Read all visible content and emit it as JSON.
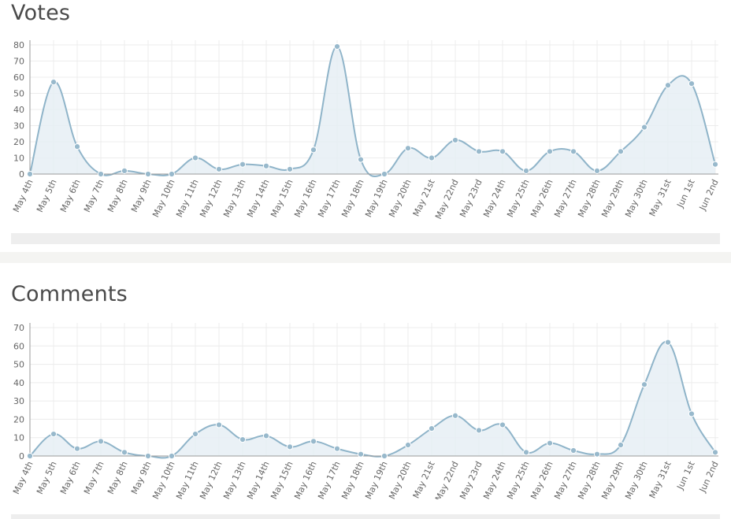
{
  "colors": {
    "line": "#8fb4c9",
    "fill": "#e6eff4",
    "point": "#98b9cc",
    "grid": "#ececec",
    "axis": "#9a9a9a",
    "background": "#ffffff",
    "separator": "#f4f4f2",
    "scrollbar": "#eeeeee"
  },
  "panels": [
    {
      "title": "Votes"
    },
    {
      "title": "Comments"
    }
  ],
  "chart_data": [
    {
      "type": "area",
      "title": "Votes",
      "xlabel": "",
      "ylabel": "",
      "grid": true,
      "ylim": [
        0,
        80
      ],
      "yticks": [
        0,
        10,
        20,
        30,
        40,
        50,
        60,
        70,
        80
      ],
      "categories": [
        "May 4th",
        "May 5th",
        "May 6th",
        "May 7th",
        "May 8th",
        "May 9th",
        "May 10th",
        "May 11th",
        "May 12th",
        "May 13th",
        "May 14th",
        "May 15th",
        "May 16th",
        "May 17th",
        "May 18th",
        "May 19th",
        "May 20th",
        "May 21st",
        "May 22nd",
        "May 23rd",
        "May 24th",
        "May 25th",
        "May 26th",
        "May 27th",
        "May 28th",
        "May 29th",
        "May 30th",
        "May 31st",
        "Jun 1st",
        "Jun 2nd"
      ],
      "series": [
        {
          "values": [
            0,
            57,
            17,
            0,
            2,
            0,
            0,
            10,
            3,
            6,
            5,
            3,
            15,
            79,
            9,
            0,
            16,
            10,
            21,
            14,
            14,
            2,
            14,
            14,
            2,
            14,
            29,
            55,
            56,
            6
          ]
        }
      ]
    },
    {
      "type": "area",
      "title": "Comments",
      "xlabel": "",
      "ylabel": "",
      "grid": true,
      "ylim": [
        0,
        70
      ],
      "yticks": [
        0,
        10,
        20,
        30,
        40,
        50,
        60,
        70
      ],
      "categories": [
        "May 4th",
        "May 5th",
        "May 6th",
        "May 7th",
        "May 8th",
        "May 9th",
        "May 10th",
        "May 11th",
        "May 12th",
        "May 13th",
        "May 14th",
        "May 15th",
        "May 16th",
        "May 17th",
        "May 18th",
        "May 19th",
        "May 20th",
        "May 21st",
        "May 22nd",
        "May 23rd",
        "May 24th",
        "May 25th",
        "May 26th",
        "May 27th",
        "May 28th",
        "May 29th",
        "May 30th",
        "May 31st",
        "Jun 1st",
        "Jun 2nd"
      ],
      "series": [
        {
          "values": [
            0,
            12,
            4,
            8,
            2,
            0,
            0,
            12,
            17,
            9,
            11,
            5,
            8,
            4,
            1,
            0,
            6,
            15,
            22,
            14,
            17,
            2,
            7,
            3,
            1,
            6,
            39,
            62,
            23,
            2
          ]
        }
      ]
    }
  ]
}
